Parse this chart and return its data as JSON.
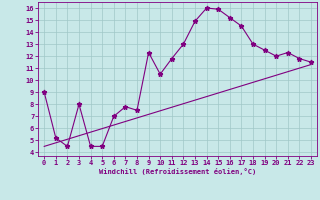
{
  "xlabel": "Windchill (Refroidissement éolien,°C)",
  "ylabel": "",
  "bg_color": "#c8e8e8",
  "line_color": "#800080",
  "xlim": [
    -0.5,
    23.5
  ],
  "ylim": [
    3.7,
    16.5
  ],
  "xticks": [
    0,
    1,
    2,
    3,
    4,
    5,
    6,
    7,
    8,
    9,
    10,
    11,
    12,
    13,
    14,
    15,
    16,
    17,
    18,
    19,
    20,
    21,
    22,
    23
  ],
  "yticks": [
    4,
    5,
    6,
    7,
    8,
    9,
    10,
    11,
    12,
    13,
    14,
    15,
    16
  ],
  "line1_x": [
    0,
    1,
    2,
    3,
    4,
    5,
    6,
    7,
    8,
    9,
    10,
    11,
    12,
    13,
    14,
    15,
    16,
    17,
    18,
    19,
    20,
    21,
    22,
    23
  ],
  "line1_y": [
    9.0,
    5.2,
    4.5,
    8.0,
    4.5,
    4.5,
    7.0,
    7.8,
    7.5,
    12.3,
    10.5,
    11.8,
    13.0,
    14.9,
    16.0,
    15.9,
    15.2,
    14.5,
    13.0,
    12.5,
    12.0,
    12.3,
    11.8,
    11.5
  ],
  "line2_x": [
    0,
    23
  ],
  "line2_y": [
    4.5,
    11.3
  ],
  "tick_fontsize": 5,
  "xlabel_fontsize": 5,
  "grid_color": "#a0c8c8",
  "marker": "*",
  "marker_size": 3.5,
  "linewidth": 0.8
}
